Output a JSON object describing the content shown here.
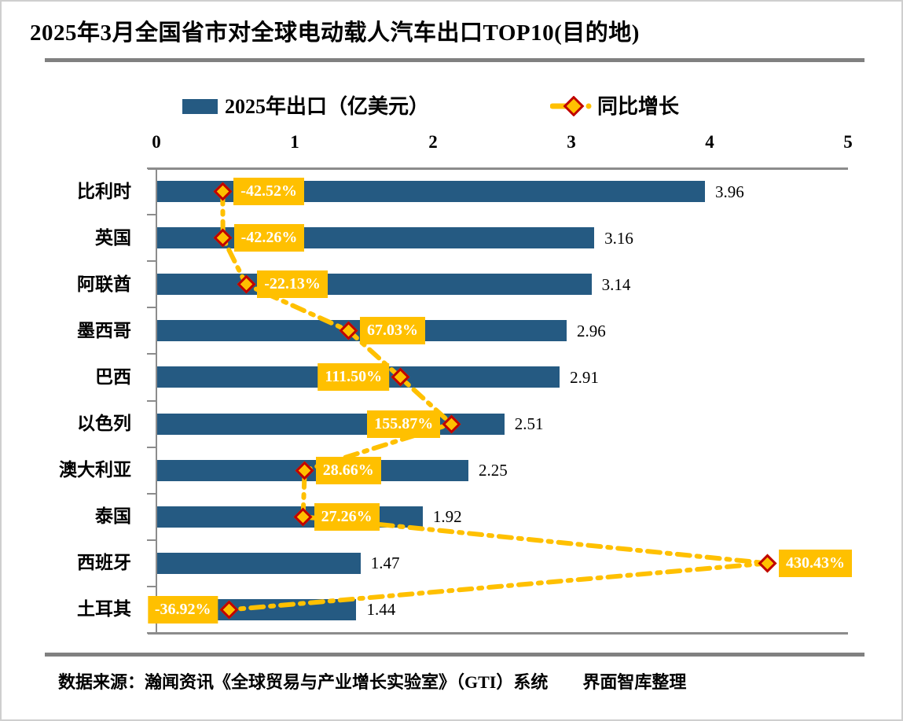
{
  "page": {
    "title": "2025年3月全国省市对全球电动载人汽车出口TOP10(目的地)",
    "source_note": "数据来源：瀚闻资讯《全球贸易与产业增长实验室》（GTI）系统　　界面智库整理"
  },
  "legend": {
    "bar_label": "2025年出口（亿美元）",
    "line_label": "同比增长"
  },
  "colors": {
    "bar": "#255A82",
    "growth_line": "#FFC000",
    "marker_fill": "#FFC000",
    "marker_border": "#C00000",
    "label_box_bg": "#FFC000",
    "label_box_text": "#FFFFFF",
    "axis_line": "#8C8C8C",
    "separator": "#808080",
    "value_label_text": "#000000"
  },
  "chart_data": {
    "type": "bar",
    "orientation": "horizontal",
    "title": "2025年3月全国省市对全球电动载人汽车出口TOP10(目的地)",
    "categories": [
      "比利时",
      "英国",
      "阿联酋",
      "墨西哥",
      "巴西",
      "以色列",
      "澳大利亚",
      "泰国",
      "西班牙",
      "土耳其"
    ],
    "series": [
      {
        "name": "2025年出口（亿美元）",
        "type": "bar",
        "values": [
          3.96,
          3.16,
          3.14,
          2.96,
          2.91,
          2.51,
          2.25,
          1.92,
          1.47,
          1.44
        ],
        "value_labels": [
          "3.96",
          "3.16",
          "3.14",
          "2.96",
          "2.91",
          "2.51",
          "2.25",
          "1.92",
          "1.47",
          "1.44"
        ]
      },
      {
        "name": "同比增长",
        "type": "line",
        "line_style": "dash-dot",
        "unit": "%",
        "values": [
          -42.52,
          -42.26,
          -22.13,
          67.03,
          111.5,
          155.87,
          28.66,
          27.26,
          430.43,
          -36.92
        ],
        "value_labels": [
          "-42.52%",
          "-42.26%",
          "-22.13%",
          "67.03%",
          "111.50%",
          "155.87%",
          "28.66%",
          "27.26%",
          "430.43%",
          "-36.92%"
        ],
        "label_side": [
          "right",
          "right",
          "right",
          "right",
          "left",
          "left",
          "right",
          "right",
          "right",
          "left"
        ]
      }
    ],
    "x_axis": {
      "position": "top",
      "min": 0,
      "max": 5,
      "ticks": [
        "0",
        "1",
        "2",
        "3",
        "4",
        "5"
      ]
    },
    "secondary_x_axis": {
      "min": -100,
      "max": 500,
      "visible": false
    },
    "grid": false,
    "legend_position": "top"
  }
}
